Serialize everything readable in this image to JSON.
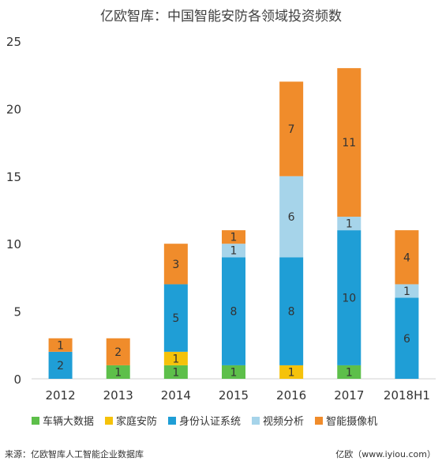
{
  "chart_data": {
    "type": "bar",
    "stacked": true,
    "title": "亿欧智库：中国智能安防各领域投资频数",
    "categories": [
      "2012",
      "2013",
      "2014",
      "2015",
      "2016",
      "2017",
      "2018H1"
    ],
    "ylim": [
      0,
      25
    ],
    "yticks": [
      0,
      5,
      10,
      15,
      20,
      25
    ],
    "grid": false,
    "legend_position": "bottom",
    "series": [
      {
        "name": "车辆大数据",
        "color": "#5dbf4a",
        "values": [
          0,
          1,
          1,
          1,
          0,
          1,
          0
        ]
      },
      {
        "name": "家庭安防",
        "color": "#f5c20a",
        "values": [
          0,
          0,
          1,
          0,
          1,
          0,
          0
        ]
      },
      {
        "name": "身份认证系统",
        "color": "#1f9ed6",
        "values": [
          2,
          0,
          5,
          8,
          8,
          10,
          6
        ]
      },
      {
        "name": "视频分析",
        "color": "#a6d4ea",
        "values": [
          0,
          0,
          0,
          1,
          6,
          1,
          1
        ]
      },
      {
        "name": "智能摄像机",
        "color": "#f08c2b",
        "values": [
          1,
          2,
          3,
          1,
          7,
          11,
          4
        ]
      }
    ]
  },
  "footer": {
    "source": "来源：亿欧智库人工智能企业数据库",
    "site": "亿欧（www.iyiou.com）"
  }
}
